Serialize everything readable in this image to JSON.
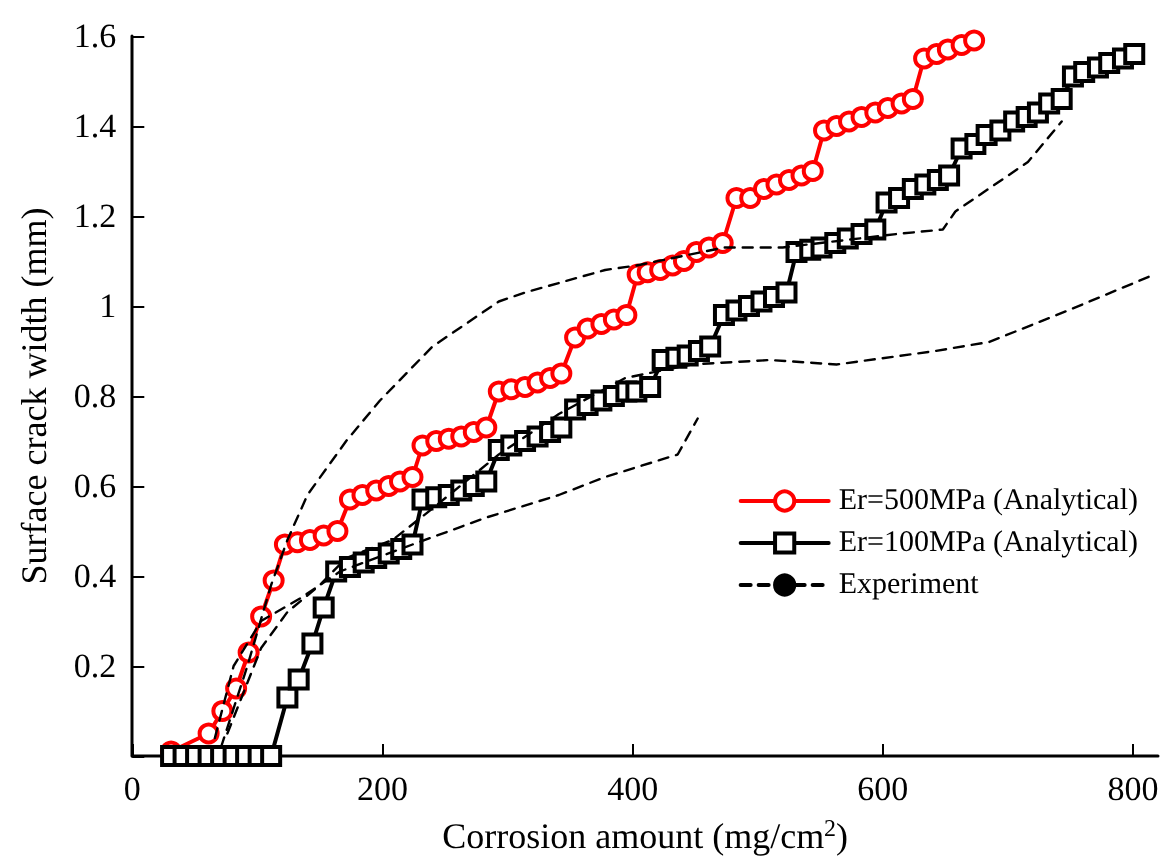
{
  "chart_data": {
    "type": "line",
    "xlabel": "Corrosion amount (mg/cm$^{2}$)",
    "ylabel": "Surface crack width (mm)",
    "xlim": [
      0,
      820
    ],
    "xticks": [
      0,
      200,
      400,
      600,
      800
    ],
    "ylim": [
      0,
      1.6
    ],
    "yticks": [
      {
        "value": 0,
        "label": null
      },
      0.2,
      0.4,
      0.6,
      0.8,
      1,
      1.2,
      1.4,
      1.6
    ],
    "grid": false,
    "legend": "right",
    "series": [
      {
        "name": "Er=500MPa (Analytical)",
        "color": "#ff0000",
        "marker": "circle",
        "line_style": "solid",
        "x": [
          31,
          61,
          72,
          83,
          93,
          103,
          113,
          122,
          132,
          142,
          153,
          164,
          174,
          184,
          195,
          205,
          214,
          224,
          232,
          243,
          253,
          263,
          273,
          283,
          293,
          303,
          314,
          324,
          334,
          343,
          354,
          364,
          375,
          385,
          395,
          404,
          412,
          422,
          432,
          441,
          451,
          461,
          472,
          483,
          494,
          505,
          515,
          525,
          535,
          544,
          553,
          563,
          573,
          583,
          594,
          604,
          615,
          624,
          633,
          643,
          652,
          663,
          673
        ],
        "values": [
          0.01,
          0.05,
          0.1,
          0.15,
          0.23,
          0.31,
          0.39,
          0.47,
          0.475,
          0.48,
          0.49,
          0.5,
          0.57,
          0.58,
          0.59,
          0.6,
          0.61,
          0.62,
          0.69,
          0.7,
          0.705,
          0.71,
          0.72,
          0.73,
          0.81,
          0.815,
          0.82,
          0.83,
          0.84,
          0.85,
          0.93,
          0.95,
          0.96,
          0.97,
          0.98,
          1.07,
          1.075,
          1.08,
          1.09,
          1.1,
          1.12,
          1.13,
          1.14,
          1.24,
          1.24,
          1.26,
          1.27,
          1.28,
          1.29,
          1.3,
          1.39,
          1.4,
          1.41,
          1.42,
          1.43,
          1.44,
          1.45,
          1.46,
          1.55,
          1.56,
          1.57,
          1.58,
          1.59
        ]
      },
      {
        "name": "Er=100MPa (Analytical)",
        "color": "#000000",
        "marker": "square",
        "line_style": "solid",
        "x": [
          31,
          41,
          51,
          61,
          71,
          81,
          91,
          101,
          111,
          124,
          133,
          144,
          153,
          163,
          174,
          185,
          195,
          205,
          215,
          224,
          232,
          243,
          253,
          263,
          273,
          283,
          293,
          303,
          314,
          324,
          334,
          343,
          354,
          364,
          375,
          385,
          395,
          403,
          414,
          424,
          435,
          444,
          453,
          462,
          473,
          483,
          493,
          503,
          513,
          523,
          531,
          542,
          551,
          562,
          572,
          583,
          594,
          603,
          613,
          624,
          634,
          644,
          653,
          663,
          674,
          683,
          694,
          705,
          715,
          724,
          733,
          743,
          752,
          761,
          772,
          781,
          792,
          801
        ],
        "values": [
          0,
          0,
          0,
          0,
          0,
          0,
          0,
          0,
          0,
          0.13,
          0.17,
          0.25,
          0.33,
          0.41,
          0.42,
          0.43,
          0.44,
          0.45,
          0.46,
          0.47,
          0.57,
          0.575,
          0.58,
          0.59,
          0.6,
          0.61,
          0.68,
          0.69,
          0.7,
          0.71,
          0.72,
          0.73,
          0.77,
          0.78,
          0.79,
          0.8,
          0.81,
          0.81,
          0.82,
          0.88,
          0.885,
          0.89,
          0.9,
          0.91,
          0.98,
          0.99,
          1.0,
          1.01,
          1.02,
          1.03,
          1.12,
          1.125,
          1.13,
          1.14,
          1.15,
          1.16,
          1.17,
          1.23,
          1.24,
          1.26,
          1.27,
          1.28,
          1.29,
          1.35,
          1.36,
          1.38,
          1.39,
          1.41,
          1.42,
          1.43,
          1.45,
          1.46,
          1.51,
          1.52,
          1.53,
          1.54,
          1.55,
          1.56
        ]
      },
      {
        "name": "Experiment",
        "color": "#000000",
        "marker": "none",
        "line_style": "dashed",
        "x": [
          71,
          92,
          111,
          124,
          140,
          171,
          198,
          240,
          293,
          314,
          378,
          403,
          473,
          520,
          611,
          648,
          658,
          716,
          743
        ],
        "values": [
          0.02,
          0.2,
          0.38,
          0.48,
          0.58,
          0.7,
          0.79,
          0.91,
          1.01,
          1.03,
          1.08,
          1.09,
          1.13,
          1.13,
          1.16,
          1.17,
          1.21,
          1.32,
          1.41
        ]
      },
      {
        "color": "#000000",
        "marker": "none",
        "line_style": "dashed",
        "x": [
          76,
          103,
          124,
          150,
          171,
          208,
          240,
          293,
          341,
          394,
          447,
          510,
          563,
          642,
          685,
          748,
          817
        ],
        "values": [
          0.05,
          0.24,
          0.32,
          0.38,
          0.44,
          0.48,
          0.55,
          0.67,
          0.76,
          0.84,
          0.87,
          0.88,
          0.87,
          0.9,
          0.92,
          0.99,
          1.07
        ]
      },
      {
        "color": "#000000",
        "marker": "none",
        "line_style": "dashed",
        "x": [
          66,
          81,
          103,
          134,
          166,
          224,
          283,
          341,
          378,
          436,
          452
        ],
        "values": [
          0.04,
          0.2,
          0.3,
          0.35,
          0.41,
          0.47,
          0.53,
          0.58,
          0.62,
          0.67,
          0.75
        ]
      }
    ]
  }
}
